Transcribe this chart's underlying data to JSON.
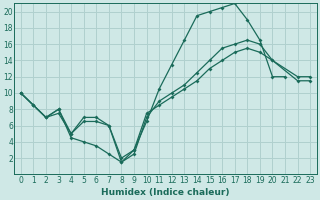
{
  "xlabel": "Humidex (Indice chaleur)",
  "xlim": [
    -0.5,
    23.5
  ],
  "ylim": [
    0,
    21
  ],
  "xticks": [
    0,
    1,
    2,
    3,
    4,
    5,
    6,
    7,
    8,
    9,
    10,
    11,
    12,
    13,
    14,
    15,
    16,
    17,
    18,
    19,
    20,
    21,
    22,
    23
  ],
  "yticks": [
    2,
    4,
    6,
    8,
    10,
    12,
    14,
    16,
    18,
    20
  ],
  "bg_color": "#cfe8e6",
  "grid_color": "#b0d0ce",
  "line_color": "#1a6b5a",
  "curves": [
    {
      "x": [
        0,
        1,
        2,
        3,
        4,
        5,
        6,
        7,
        8,
        9,
        10,
        11,
        12,
        13,
        14,
        15,
        16,
        17,
        18,
        19,
        20,
        21
      ],
      "y": [
        10,
        8.5,
        7,
        8,
        5,
        7,
        7,
        6,
        1.5,
        3,
        6.5,
        10.5,
        13.5,
        16.5,
        19.5,
        20,
        20.5,
        21,
        19,
        16.5,
        12,
        12
      ]
    },
    {
      "x": [
        0,
        1,
        2,
        3,
        4,
        5,
        6,
        7,
        8,
        9,
        10,
        11,
        12,
        13,
        14,
        15,
        16,
        17,
        18,
        19,
        20,
        22,
        23
      ],
      "y": [
        10,
        8.5,
        7,
        8,
        4.5,
        4,
        3.5,
        2.5,
        1.5,
        2.5,
        7,
        9,
        10,
        11,
        12.5,
        14,
        15.5,
        16,
        16.5,
        16,
        14,
        12,
        12
      ]
    },
    {
      "x": [
        0,
        1,
        2,
        3,
        4,
        5,
        6,
        7,
        8,
        9,
        10,
        11,
        12,
        13,
        14,
        15,
        16,
        17,
        18,
        19,
        20,
        22,
        23
      ],
      "y": [
        10,
        8.5,
        7,
        7.5,
        5,
        6.5,
        6.5,
        6,
        2,
        3,
        7.5,
        8.5,
        9.5,
        10.5,
        11.5,
        13,
        14,
        15,
        15.5,
        15,
        14,
        11.5,
        11.5
      ]
    }
  ]
}
